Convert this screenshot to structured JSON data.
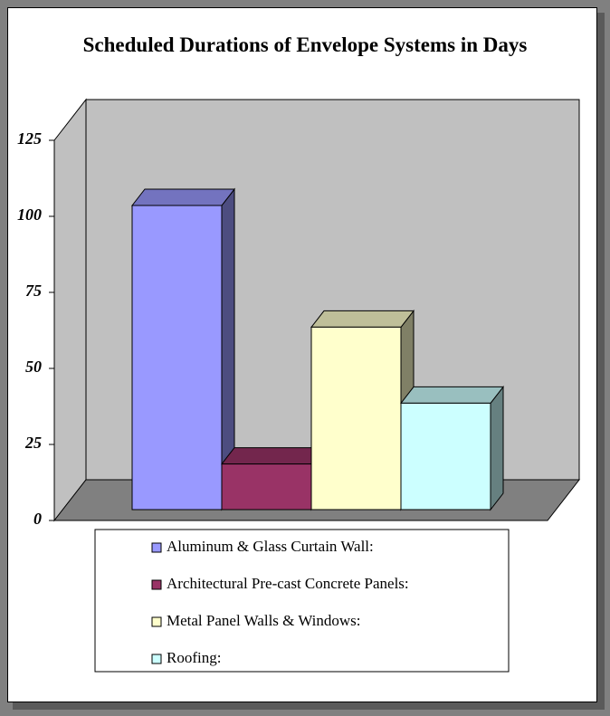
{
  "chart_data": {
    "type": "bar3d",
    "title": "Scheduled Durations of Envelope Systems in Days",
    "series": [
      {
        "name": "Aluminum & Glass Curtain Wall:",
        "color": "#9999ff",
        "values": [
          100
        ]
      },
      {
        "name": "Architectural Pre-cast Concrete Panels:",
        "color": "#993366",
        "values": [
          15
        ]
      },
      {
        "name": "Metal Panel Walls & Windows:",
        "color": "#ffffcc",
        "values": [
          60
        ]
      },
      {
        "name": "Roofing:",
        "color": "#ccffff",
        "values": [
          35
        ]
      }
    ],
    "ylim": [
      0,
      125
    ],
    "yticks": [
      0,
      25,
      50,
      75,
      100,
      125
    ],
    "grid": false
  }
}
